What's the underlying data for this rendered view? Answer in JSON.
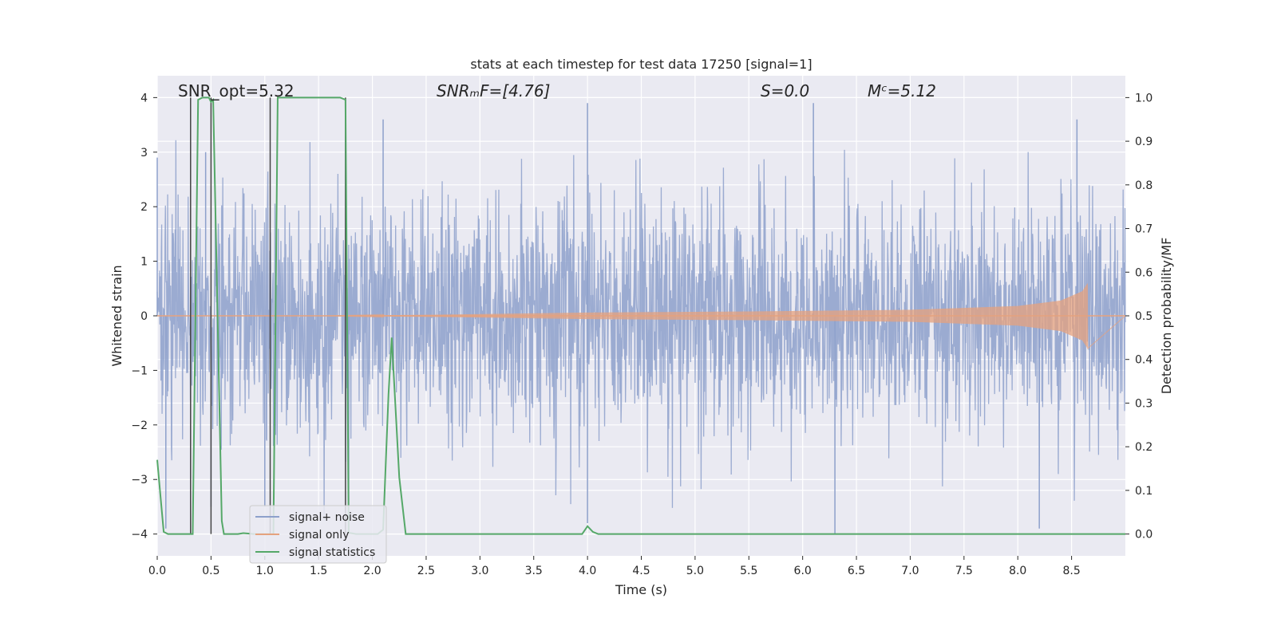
{
  "chart_data": {
    "type": "line",
    "title": "stats at each timestep for test data 17250 [signal=1]",
    "xlabel": "Time (s)",
    "ylabel_left": "Whitened strain",
    "ylabel_right": "Detection probability/MF",
    "xlim": [
      0.0,
      9.0
    ],
    "ylim_left": [
      -4.4,
      4.4
    ],
    "ylim_right": [
      -0.05,
      1.05
    ],
    "x_ticks": [
      0.0,
      0.5,
      1.0,
      1.5,
      2.0,
      2.5,
      3.0,
      3.5,
      4.0,
      4.5,
      5.0,
      5.5,
      6.0,
      6.5,
      7.0,
      7.5,
      8.0,
      8.5
    ],
    "x_tick_labels": [
      "0.0",
      "0.5",
      "1.0",
      "1.5",
      "2.0",
      "2.5",
      "3.0",
      "3.5",
      "4.0",
      "4.5",
      "5.0",
      "5.5",
      "6.0",
      "6.5",
      "7.0",
      "7.5",
      "8.0",
      "8.5"
    ],
    "y_left_ticks": [
      4,
      3,
      2,
      1,
      0,
      -1,
      -2,
      -3,
      -4
    ],
    "y_left_tick_labels": [
      "4",
      "3",
      "2",
      "1",
      "0",
      "−1",
      "−2",
      "−3",
      "−4"
    ],
    "y_right_ticks": [
      1.0,
      0.9,
      0.8,
      0.7,
      0.6,
      0.5,
      0.4,
      0.3,
      0.2,
      0.1,
      0.0
    ],
    "y_right_tick_labels": [
      "1.0",
      "0.9",
      "0.8",
      "0.7",
      "0.6",
      "0.5",
      "0.4",
      "0.3",
      "0.2",
      "0.1",
      "0.0"
    ],
    "grid": true,
    "legend_position": "lower-left",
    "annotations": {
      "snr_opt": "SNR_opt=5.32",
      "snr_mf": "SNRₘF=[4.76]",
      "s_value": "S=0.0",
      "mc_value": "Mᶜ=5.12"
    },
    "series": [
      {
        "name": "signal+ noise",
        "axis": "left",
        "color": "#8da0cb",
        "envelope": {
          "description_none": "",
          "x": [
            0.0,
            9.0
          ],
          "typical_abs_max": 2.5,
          "notable_peaks": [
            {
              "x": 0.0,
              "y": 2.9
            },
            {
              "x": 0.08,
              "y": -3.9
            },
            {
              "x": 0.45,
              "y": 3.0
            },
            {
              "x": 0.5,
              "y": -3.5
            },
            {
              "x": 1.0,
              "y": -3.5
            },
            {
              "x": 1.75,
              "y": 3.3
            },
            {
              "x": 1.78,
              "y": -3.9
            },
            {
              "x": 2.1,
              "y": 3.6
            },
            {
              "x": 4.0,
              "y": 3.9
            },
            {
              "x": 4.0,
              "y": -3.8
            },
            {
              "x": 6.1,
              "y": 3.9
            },
            {
              "x": 6.3,
              "y": -4.0
            },
            {
              "x": 8.2,
              "y": -3.9
            },
            {
              "x": 8.55,
              "y": 3.6
            }
          ]
        }
      },
      {
        "name": "signal only",
        "axis": "left",
        "color": "#e5a27e",
        "chirp_amplitude": [
          {
            "x": 2.6,
            "a": 0.02
          },
          {
            "x": 4.0,
            "a": 0.06
          },
          {
            "x": 5.5,
            "a": 0.08
          },
          {
            "x": 7.0,
            "a": 0.11
          },
          {
            "x": 8.0,
            "a": 0.18
          },
          {
            "x": 8.4,
            "a": 0.28
          },
          {
            "x": 8.6,
            "a": 0.45
          },
          {
            "x": 8.65,
            "a": 0.6
          }
        ],
        "end_x": 8.65
      },
      {
        "name": "signal statistics",
        "axis": "right",
        "color": "#55a868",
        "x": [
          0.0,
          0.06,
          0.1,
          0.2,
          0.3,
          0.33,
          0.38,
          0.42,
          0.48,
          0.5,
          0.52,
          0.6,
          0.62,
          0.7,
          0.75,
          0.8,
          0.9,
          1.0,
          1.04,
          1.08,
          1.12,
          1.2,
          1.3,
          1.4,
          1.5,
          1.6,
          1.7,
          1.75,
          1.78,
          1.85,
          1.9,
          2.0,
          2.05,
          2.1,
          2.15,
          2.18,
          2.25,
          2.31,
          2.4,
          3.0,
          3.5,
          3.95,
          4.0,
          4.05,
          4.1,
          4.5,
          5.0,
          6.0,
          7.0,
          8.0,
          9.0
        ],
        "y": [
          0.17,
          0.005,
          0.0,
          0.0,
          0.0,
          0.0,
          0.995,
          1.0,
          1.0,
          0.99,
          0.995,
          0.03,
          0.0,
          0.0,
          0.0,
          0.002,
          0.0,
          0.0,
          0.0,
          0.0,
          1.0,
          1.0,
          1.0,
          1.0,
          1.0,
          1.0,
          1.0,
          0.995,
          0.003,
          0.0,
          0.0,
          0.0,
          0.0,
          0.01,
          0.32,
          0.45,
          0.13,
          0.0,
          0.0,
          0.0,
          0.0,
          0.0,
          0.018,
          0.005,
          0.0,
          0.0,
          0.0,
          0.0,
          0.0,
          0.0,
          0.0
        ]
      }
    ],
    "vertical_markers": [
      0.31,
      0.5,
      1.05,
      1.75
    ]
  }
}
